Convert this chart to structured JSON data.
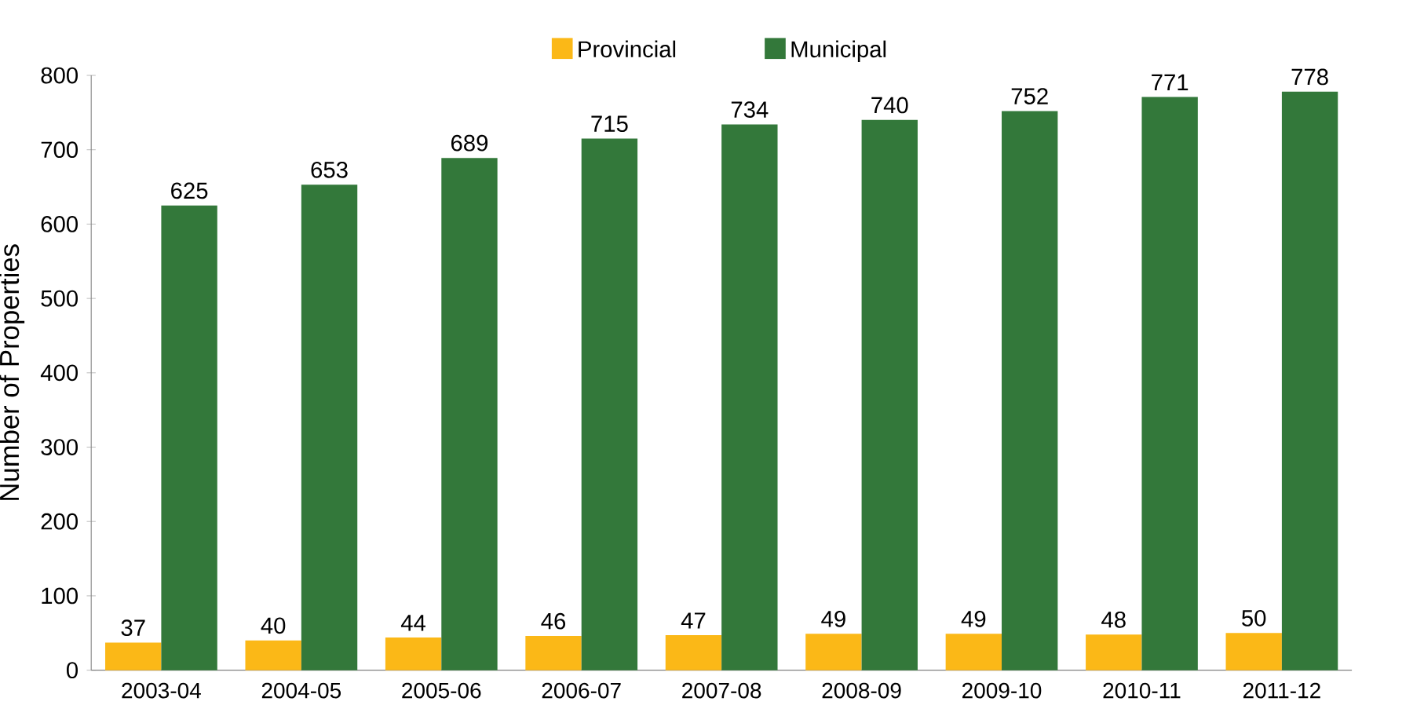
{
  "chart_data": {
    "type": "bar",
    "ylabel": "Number of Properties",
    "categories": [
      "2003-04",
      "2004-05",
      "2005-06",
      "2006-07",
      "2007-08",
      "2008-09",
      "2009-10",
      "2010-11",
      "2011-12"
    ],
    "series": [
      {
        "name": "Provincial",
        "color": "#fbb817",
        "values": [
          37,
          40,
          44,
          46,
          47,
          49,
          49,
          48,
          50
        ]
      },
      {
        "name": "Municipal",
        "color": "#33783a",
        "values": [
          625,
          653,
          689,
          715,
          734,
          740,
          752,
          771,
          778
        ]
      }
    ],
    "ylim": [
      0,
      800
    ],
    "yticks": [
      0,
      100,
      200,
      300,
      400,
      500,
      600,
      700,
      800
    ],
    "data_labels": true,
    "legend": "top",
    "grid": false
  }
}
